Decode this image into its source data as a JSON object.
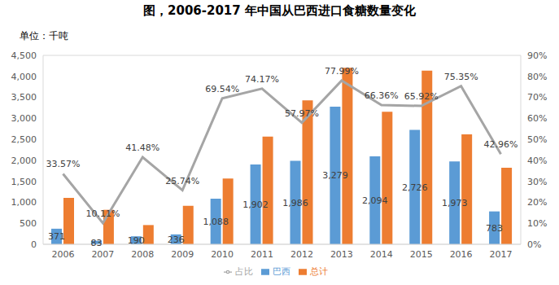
{
  "chart_data": {
    "type": "bar",
    "title": "图，2006-2017 年中国从巴西进口食糖数量变化",
    "subtitle": "单位：千吨",
    "categories": [
      "2006",
      "2007",
      "2008",
      "2009",
      "2010",
      "2011",
      "2012",
      "2013",
      "2014",
      "2015",
      "2016",
      "2017"
    ],
    "series": [
      {
        "name": "巴西",
        "type": "bar",
        "color": "#5B9BD5",
        "data_labels": true,
        "values": [
          371,
          83,
          190,
          236,
          1088,
          1902,
          1986,
          3279,
          2094,
          2726,
          1973,
          783
        ],
        "value_labels": [
          "371",
          "83",
          "190",
          "236",
          "1,088",
          "1,902",
          "1,986",
          "3,279",
          "2,094",
          "2,726",
          "1,973",
          "783"
        ]
      },
      {
        "name": "总计",
        "type": "bar",
        "color": "#ED7D31",
        "values": [
          1105,
          821,
          458,
          917,
          1565,
          2564,
          3426,
          4204,
          3156,
          4135,
          2618,
          1823
        ]
      },
      {
        "name": "占比",
        "type": "line",
        "axis": "y2",
        "color": "#A5A5A5",
        "data_labels": true,
        "values": [
          33.57,
          10.11,
          41.48,
          25.74,
          69.54,
          74.17,
          57.97,
          77.99,
          66.36,
          65.92,
          75.35,
          42.96
        ],
        "value_labels": [
          "33.57%",
          "10.11%",
          "41.48%",
          "25.74%",
          "69.54%",
          "74.17%",
          "57.97%",
          "77.99%",
          "66.36%",
          "65.92%",
          "75.35%",
          "42.96%"
        ]
      }
    ],
    "ylim": [
      0,
      4500
    ],
    "yticks": [
      0,
      500,
      {
        "value": 1000,
        "label": "1,000"
      },
      {
        "value": 1500,
        "label": "1,500"
      },
      {
        "value": 2000,
        "label": "2,000"
      },
      {
        "value": 2500,
        "label": "2,500"
      },
      {
        "value": 3000,
        "label": "3,000"
      },
      {
        "value": 3500,
        "label": "3,500"
      },
      {
        "value": 4000,
        "label": "4,000"
      },
      {
        "value": 4500,
        "label": "4,500"
      }
    ],
    "y2lim": [
      0,
      90
    ],
    "y2ticks": [
      {
        "value": 0,
        "label": "0%"
      },
      {
        "value": 10,
        "label": "10%"
      },
      {
        "value": 20,
        "label": "20%"
      },
      {
        "value": 30,
        "label": "30%"
      },
      {
        "value": 40,
        "label": "40%"
      },
      {
        "value": 50,
        "label": "50%"
      },
      {
        "value": 60,
        "label": "60%"
      },
      {
        "value": 70,
        "label": "70%"
      },
      {
        "value": 80,
        "label": "80%"
      },
      {
        "value": 90,
        "label": "90%"
      }
    ],
    "grid": true,
    "legend": "bottom"
  }
}
